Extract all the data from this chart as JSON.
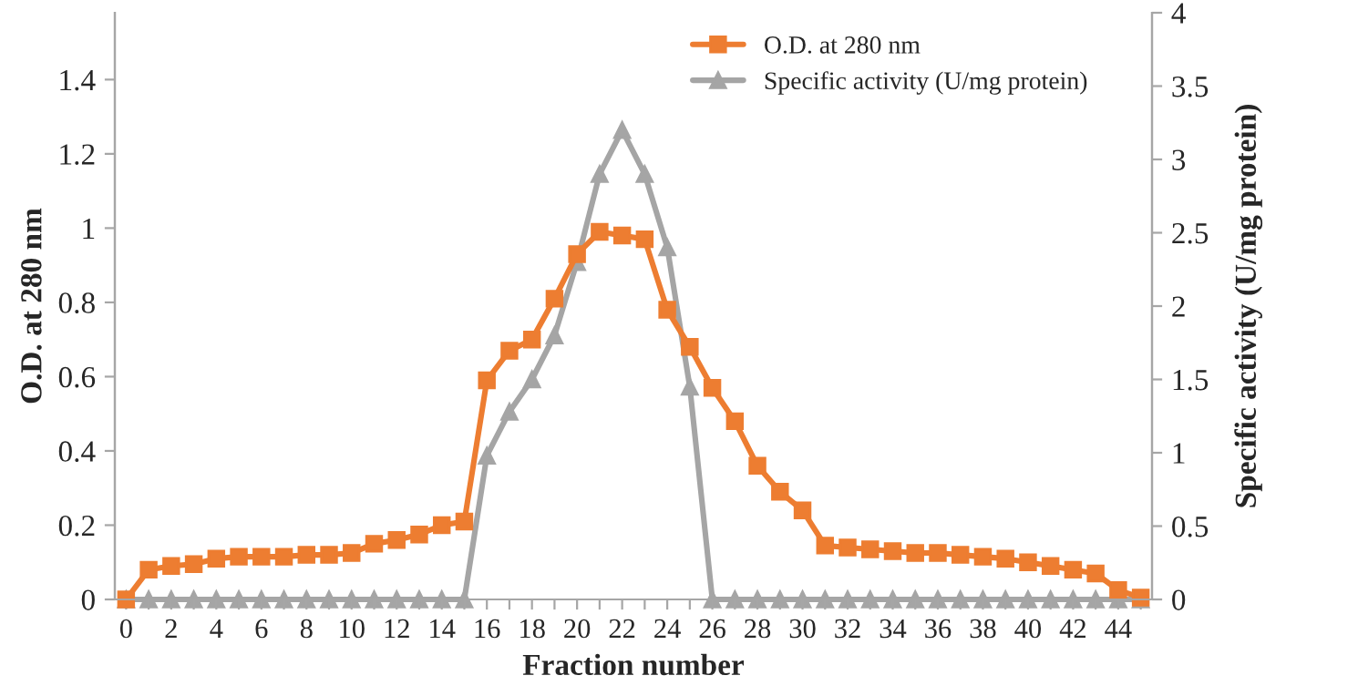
{
  "chart_data": {
    "type": "line",
    "xlabel": "Fraction number",
    "ylabel": "O.D. at 280 nm",
    "y2label": "Specific activity (U/mg protein)",
    "categories": [
      "0",
      null,
      "2",
      null,
      "4",
      null,
      "6",
      null,
      "8",
      null,
      "10",
      null,
      "12",
      null,
      "14",
      null,
      "16",
      null,
      "18",
      null,
      "20",
      null,
      "22",
      null,
      "24",
      null,
      "26",
      null,
      "28",
      null,
      "30",
      null,
      "32",
      null,
      "34",
      null,
      "36",
      null,
      "38",
      null,
      "40",
      null,
      "42",
      null,
      "44",
      null
    ],
    "series": [
      {
        "name": "O.D. at 280 nm",
        "color": "#ed7d31",
        "marker": "square",
        "values": [
          0,
          0.08,
          0.09,
          0.095,
          0.11,
          0.115,
          0.115,
          0.115,
          0.12,
          0.12,
          0.125,
          0.15,
          0.16,
          0.175,
          0.2,
          0.21,
          0.59,
          0.67,
          0.7,
          0.81,
          0.93,
          0.99,
          0.98,
          0.97,
          0.78,
          0.68,
          0.57,
          0.48,
          0.36,
          0.29,
          0.24,
          0.145,
          0.14,
          0.135,
          0.13,
          0.125,
          0.125,
          0.12,
          0.115,
          0.11,
          0.1,
          0.09,
          0.08,
          0.07,
          0.025,
          0.005
        ]
      },
      {
        "name": "Specific activity (U/mg protein)",
        "color": "#a5a5a5",
        "marker": "triangle",
        "axis": "y2",
        "values": [
          0,
          0,
          0,
          0,
          0,
          0,
          0,
          0,
          0,
          0,
          0,
          0,
          0,
          0,
          0,
          0,
          0.98,
          1.28,
          1.5,
          1.8,
          2.3,
          2.9,
          3.2,
          2.9,
          2.4,
          1.45,
          0,
          0,
          0,
          0,
          0,
          0,
          0,
          0,
          0,
          0,
          0,
          0,
          0,
          0,
          0,
          0,
          0,
          0,
          0,
          0
        ]
      }
    ],
    "ylim": [
      0,
      1.58
    ],
    "yticks": [
      0,
      0.2,
      0.4,
      0.6,
      0.8,
      1,
      1.2,
      1.4
    ],
    "y2lim": [
      0,
      4
    ],
    "y2ticks": [
      0,
      0.5,
      1,
      1.5,
      2,
      2.5,
      3,
      3.5,
      4
    ],
    "grid": false,
    "legend": "top right",
    "line_style": "solid"
  }
}
